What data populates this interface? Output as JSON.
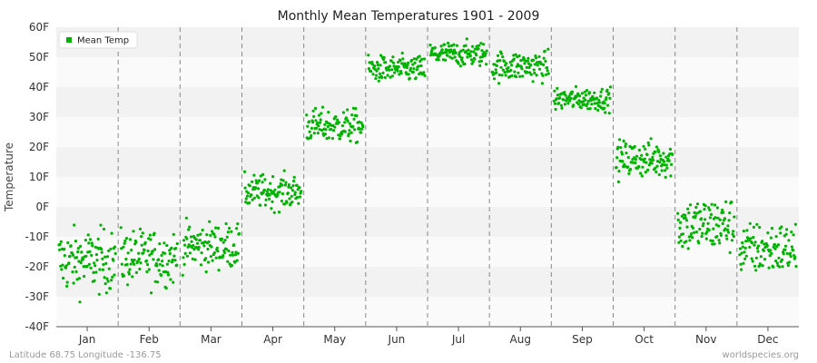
{
  "footer": {
    "left": "Latitude 68.75 Longitude -136.75",
    "right": "worldspecies.org"
  },
  "colors": {
    "series": "#00b300",
    "band_light": "#fafafa",
    "band_dark": "#f2f2f2",
    "separator": "#888888"
  },
  "chart_data": {
    "type": "scatter",
    "title": "Monthly Mean Temperatures 1901 - 2009",
    "xlabel": "",
    "ylabel": "Temperature",
    "categories": [
      "Jan",
      "Feb",
      "Mar",
      "Apr",
      "May",
      "Jun",
      "Jul",
      "Aug",
      "Sep",
      "Oct",
      "Nov",
      "Dec"
    ],
    "yticks": [
      "-40F",
      "-30F",
      "-20F",
      "-10F",
      "0F",
      "10F",
      "20F",
      "30F",
      "40F",
      "50F",
      "60F"
    ],
    "ylim": [
      -40,
      60
    ],
    "grid": "alternating horizontal bands",
    "legend": {
      "position": "top-left",
      "entries": [
        "Mean Temp"
      ]
    },
    "series": [
      {
        "name": "Mean Temp",
        "points_per_month": 109,
        "monthly_summary": [
          {
            "month": "Jan",
            "min": -32,
            "max": 4,
            "center": -18
          },
          {
            "month": "Feb",
            "min": -30,
            "max": 2,
            "center": -17
          },
          {
            "month": "Mar",
            "min": -24,
            "max": 2,
            "center": -13
          },
          {
            "month": "Apr",
            "min": -5,
            "max": 14,
            "center": 5
          },
          {
            "month": "May",
            "min": 18,
            "max": 37,
            "center": 27
          },
          {
            "month": "Jun",
            "min": 39,
            "max": 54,
            "center": 46
          },
          {
            "month": "Jul",
            "min": 45,
            "max": 59,
            "center": 51
          },
          {
            "month": "Aug",
            "min": 38,
            "max": 55,
            "center": 47
          },
          {
            "month": "Sep",
            "min": 28,
            "max": 41,
            "center": 36
          },
          {
            "month": "Oct",
            "min": 5,
            "max": 26,
            "center": 16
          },
          {
            "month": "Nov",
            "min": -20,
            "max": 12,
            "center": -6
          },
          {
            "month": "Dec",
            "min": -27,
            "max": 3,
            "center": -14
          }
        ]
      }
    ]
  }
}
